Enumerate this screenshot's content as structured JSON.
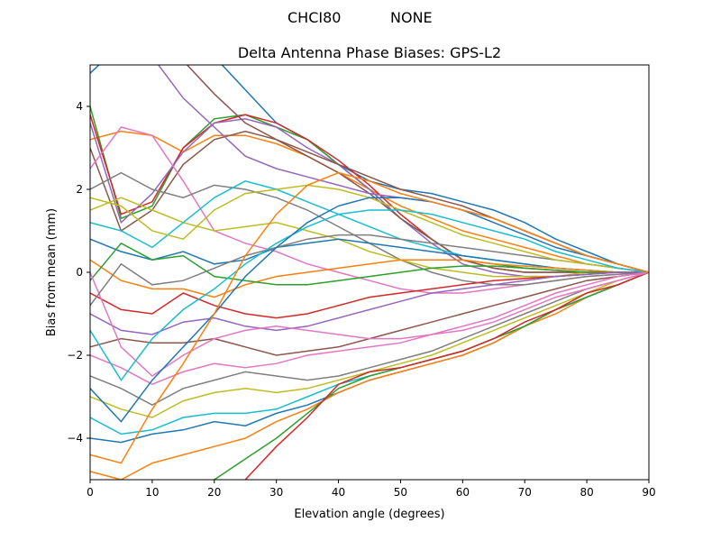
{
  "figure": {
    "suptitle_left": "CHCI80",
    "suptitle_right": "NONE"
  },
  "chart_data": {
    "type": "line",
    "title": "Delta Antenna Phase Biases: GPS-L2",
    "xlabel": "Elevation angle (degrees)",
    "ylabel": "Bias from mean (mm)",
    "xlim": [
      0,
      90
    ],
    "ylim": [
      -5,
      5
    ],
    "xticks": [
      0,
      10,
      20,
      30,
      40,
      50,
      60,
      70,
      80,
      90
    ],
    "yticks": [
      -4,
      -2,
      0,
      2,
      4
    ],
    "ytick_labels": [
      "−4",
      "−2",
      "0",
      "2",
      "4"
    ],
    "grid": false,
    "legend": "none",
    "x": [
      0,
      5,
      10,
      15,
      20,
      25,
      30,
      35,
      40,
      45,
      50,
      55,
      60,
      65,
      70,
      75,
      80,
      85,
      90
    ],
    "colors": [
      "#1f77b4",
      "#ff7f0e",
      "#2ca02c",
      "#d62728",
      "#9467bd",
      "#8c564b",
      "#e377c2",
      "#7f7f7f",
      "#bcbd22",
      "#17becf"
    ],
    "series": [
      {
        "values": [
          4.8,
          5.5,
          6.0,
          5.6,
          5.2,
          4.4,
          3.6,
          3.2,
          2.6,
          2.2,
          2.0,
          1.9,
          1.7,
          1.5,
          1.2,
          0.8,
          0.5,
          0.2,
          0
        ]
      },
      {
        "values": [
          3.2,
          3.4,
          3.3,
          2.9,
          3.3,
          3.3,
          3.1,
          2.8,
          2.4,
          2.0,
          1.6,
          1.3,
          1.0,
          0.8,
          0.6,
          0.4,
          0.2,
          0.1,
          0
        ]
      },
      {
        "values": [
          4.0,
          1.3,
          1.6,
          3.0,
          3.7,
          3.8,
          3.5,
          3.2,
          2.6,
          2.0,
          1.3,
          0.8,
          0.3,
          0.2,
          0.1,
          0.05,
          0.0,
          0.0,
          0
        ]
      },
      {
        "values": [
          3.8,
          1.4,
          1.7,
          3.0,
          3.6,
          3.8,
          3.6,
          3.2,
          2.7,
          2.1,
          1.4,
          0.8,
          0.3,
          0.1,
          0.0,
          0.0,
          0.0,
          0.0,
          0
        ]
      },
      {
        "values": [
          3.6,
          1.2,
          1.9,
          2.9,
          3.6,
          3.7,
          3.5,
          3.0,
          2.6,
          2.0,
          1.3,
          0.7,
          0.2,
          0.0,
          -0.1,
          -0.1,
          -0.05,
          0.0,
          0
        ]
      },
      {
        "values": [
          3.0,
          1.0,
          1.5,
          2.6,
          3.2,
          3.4,
          3.2,
          2.8,
          2.4,
          1.9,
          1.3,
          0.8,
          0.3,
          0.1,
          0.0,
          0.0,
          0.0,
          0.0,
          0
        ]
      },
      {
        "values": [
          2.5,
          3.5,
          3.3,
          2.2,
          1.0,
          0.7,
          0.5,
          0.2,
          0.0,
          -0.2,
          -0.4,
          -0.5,
          -0.5,
          -0.4,
          -0.3,
          -0.2,
          -0.1,
          -0.05,
          0
        ]
      },
      {
        "values": [
          2.0,
          2.4,
          2.0,
          1.8,
          2.1,
          2.0,
          1.8,
          1.5,
          1.1,
          0.7,
          0.3,
          0.0,
          -0.2,
          -0.3,
          -0.3,
          -0.2,
          -0.1,
          -0.05,
          0
        ]
      },
      {
        "values": [
          1.5,
          1.8,
          1.5,
          1.2,
          1.0,
          1.1,
          1.2,
          1.0,
          0.8,
          0.5,
          0.3,
          0.1,
          0.0,
          -0.1,
          -0.1,
          -0.1,
          0.0,
          0.0,
          0
        ]
      },
      {
        "values": [
          1.2,
          1.0,
          0.6,
          1.2,
          1.8,
          2.2,
          2.0,
          1.7,
          1.4,
          1.1,
          0.8,
          0.6,
          0.4,
          0.3,
          0.2,
          0.1,
          0.05,
          0.0,
          0
        ]
      },
      {
        "values": [
          0.8,
          0.5,
          0.3,
          0.5,
          0.2,
          0.3,
          0.6,
          0.7,
          0.8,
          0.7,
          0.6,
          0.5,
          0.4,
          0.3,
          0.2,
          0.1,
          0.05,
          0.0,
          0
        ]
      },
      {
        "values": [
          0.3,
          -0.2,
          -0.4,
          -0.4,
          -0.6,
          -0.3,
          -0.1,
          0.0,
          0.1,
          0.2,
          0.3,
          0.3,
          0.3,
          0.2,
          0.15,
          0.1,
          0.05,
          0.0,
          0
        ]
      },
      {
        "values": [
          -0.2,
          0.7,
          0.3,
          0.4,
          -0.1,
          -0.2,
          -0.3,
          -0.3,
          -0.2,
          -0.1,
          0.0,
          0.1,
          0.15,
          0.15,
          0.1,
          0.05,
          0.0,
          0.0,
          0
        ]
      },
      {
        "values": [
          -0.5,
          -0.9,
          -1.0,
          -0.5,
          -0.8,
          -1.0,
          -1.1,
          -1.0,
          -0.8,
          -0.6,
          -0.5,
          -0.4,
          -0.3,
          -0.2,
          -0.15,
          -0.1,
          -0.05,
          0.0,
          0
        ]
      },
      {
        "values": [
          -1.0,
          -1.4,
          -1.5,
          -1.2,
          -1.1,
          -1.3,
          -1.4,
          -1.3,
          -1.1,
          -0.9,
          -0.7,
          -0.5,
          -0.4,
          -0.3,
          -0.2,
          -0.1,
          -0.05,
          0.0,
          0
        ]
      },
      {
        "values": [
          -1.8,
          -1.6,
          -1.7,
          -1.7,
          -1.6,
          -1.8,
          -2.0,
          -1.9,
          -1.8,
          -1.6,
          -1.4,
          -1.2,
          -1.0,
          -0.8,
          -0.6,
          -0.4,
          -0.2,
          -0.1,
          0
        ]
      },
      {
        "values": [
          -2.0,
          -2.3,
          -2.7,
          -2.4,
          -2.2,
          -2.3,
          -2.2,
          -2.0,
          -1.9,
          -1.8,
          -1.7,
          -1.5,
          -1.3,
          -1.1,
          -0.8,
          -0.5,
          -0.3,
          -0.1,
          0
        ]
      },
      {
        "values": [
          -2.5,
          -2.8,
          -3.2,
          -2.8,
          -2.6,
          -2.4,
          -2.5,
          -2.6,
          -2.5,
          -2.3,
          -2.1,
          -1.9,
          -1.6,
          -1.3,
          -1.0,
          -0.7,
          -0.4,
          -0.2,
          0
        ]
      },
      {
        "values": [
          -3.0,
          -3.3,
          -3.5,
          -3.1,
          -2.9,
          -2.8,
          -2.9,
          -2.8,
          -2.6,
          -2.4,
          -2.2,
          -2.0,
          -1.7,
          -1.4,
          -1.1,
          -0.8,
          -0.5,
          -0.2,
          0
        ]
      },
      {
        "values": [
          -3.5,
          -3.9,
          -3.8,
          -3.5,
          -3.4,
          -3.4,
          -3.3,
          -3.0,
          -2.7,
          -2.5,
          -2.3,
          -2.1,
          -1.9,
          -1.6,
          -1.3,
          -0.9,
          -0.6,
          -0.3,
          0
        ]
      },
      {
        "values": [
          -4.0,
          -4.1,
          -3.9,
          -3.8,
          -3.6,
          -3.7,
          -3.4,
          -3.2,
          -2.9,
          -2.6,
          -2.4,
          -2.2,
          -2.0,
          -1.7,
          -1.3,
          -0.9,
          -0.6,
          -0.3,
          0
        ]
      },
      {
        "values": [
          -4.8,
          -5.0,
          -4.6,
          -4.4,
          -4.2,
          -4.0,
          -3.6,
          -3.3,
          -2.9,
          -2.6,
          -2.4,
          -2.2,
          -2.0,
          -1.7,
          -1.3,
          -1.0,
          -0.6,
          -0.3,
          0
        ]
      },
      {
        "values": [
          -5.5,
          -5.8,
          -5.5,
          -5.3,
          -5.0,
          -4.5,
          -4.0,
          -3.4,
          -2.8,
          -2.5,
          -2.3,
          -2.1,
          -1.9,
          -1.6,
          -1.3,
          -0.9,
          -0.6,
          -0.3,
          0
        ]
      },
      {
        "values": [
          -6.0,
          -6.2,
          -6.0,
          -5.8,
          -5.6,
          -5.0,
          -4.2,
          -3.5,
          -2.7,
          -2.4,
          -2.3,
          -2.1,
          -1.9,
          -1.6,
          -1.2,
          -0.9,
          -0.5,
          -0.3,
          0
        ]
      },
      {
        "values": [
          5.6,
          6.0,
          5.2,
          4.2,
          3.5,
          2.8,
          2.5,
          2.3,
          2.1,
          1.9,
          1.8,
          1.7,
          1.5,
          1.3,
          1.0,
          0.7,
          0.4,
          0.2,
          0
        ]
      },
      {
        "values": [
          6.0,
          6.3,
          5.8,
          5.1,
          4.3,
          3.6,
          3.2,
          2.9,
          2.6,
          2.3,
          2.0,
          1.8,
          1.6,
          1.3,
          1.0,
          0.7,
          0.4,
          0.2,
          0
        ]
      },
      {
        "values": [
          0.0,
          -1.8,
          -2.5,
          -2.0,
          -1.6,
          -1.4,
          -1.3,
          -1.4,
          -1.5,
          -1.6,
          -1.6,
          -1.5,
          -1.4,
          -1.2,
          -0.9,
          -0.6,
          -0.4,
          -0.2,
          0
        ]
      },
      {
        "values": [
          -0.8,
          0.2,
          -0.3,
          -0.2,
          0.1,
          0.4,
          0.6,
          0.8,
          0.9,
          0.9,
          0.8,
          0.7,
          0.6,
          0.5,
          0.4,
          0.3,
          0.2,
          0.1,
          0
        ]
      },
      {
        "values": [
          1.8,
          1.6,
          1.0,
          0.8,
          1.5,
          1.9,
          2.0,
          2.1,
          2.0,
          1.8,
          1.5,
          1.2,
          0.9,
          0.7,
          0.5,
          0.3,
          0.2,
          0.1,
          0
        ]
      },
      {
        "values": [
          -1.4,
          -2.6,
          -1.6,
          -0.9,
          -0.4,
          0.2,
          0.7,
          1.1,
          1.4,
          1.5,
          1.5,
          1.4,
          1.2,
          1.0,
          0.8,
          0.5,
          0.3,
          0.1,
          0
        ]
      },
      {
        "values": [
          -2.8,
          -3.6,
          -2.6,
          -1.8,
          -1.0,
          -0.1,
          0.6,
          1.2,
          1.6,
          1.8,
          1.8,
          1.7,
          1.5,
          1.2,
          0.9,
          0.6,
          0.4,
          0.2,
          0
        ]
      },
      {
        "values": [
          -4.4,
          -4.6,
          -3.3,
          -2.2,
          -1.0,
          0.4,
          1.4,
          2.1,
          2.4,
          2.2,
          1.9,
          1.7,
          1.5,
          1.3,
          1.0,
          0.7,
          0.4,
          0.2,
          0
        ]
      }
    ]
  }
}
